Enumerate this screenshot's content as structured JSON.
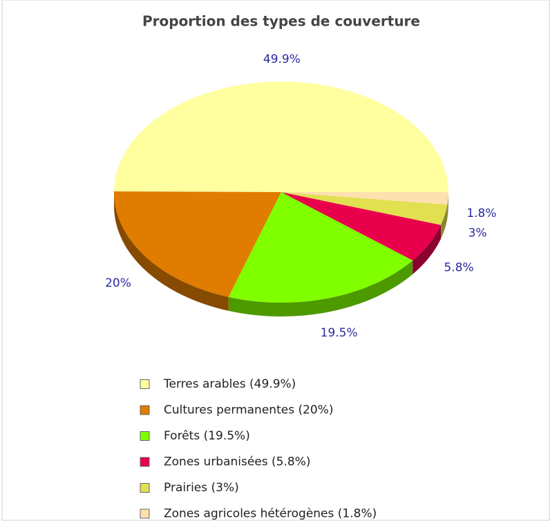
{
  "chart_data": {
    "type": "pie",
    "title": "Proportion des types de couverture",
    "categories": [
      "Terres arables (49.9%)",
      "Cultures permanentes (20%)",
      "Forêts (19.5%)",
      "Zones urbanisées (5.8%)",
      "Prairies (3%)",
      "Zones agricoles hétérogènes (1.8%)"
    ],
    "values": [
      49.9,
      20,
      19.5,
      5.8,
      3,
      1.8
    ],
    "value_labels": [
      "49.9%",
      "20%",
      "19.5%",
      "5.8%",
      "3%",
      "1.8%"
    ],
    "colors": [
      "#ffffa0",
      "#e07c00",
      "#80ff00",
      "#e8004c",
      "#e0e050",
      "#ffe0b0"
    ],
    "legend": "bottom"
  }
}
